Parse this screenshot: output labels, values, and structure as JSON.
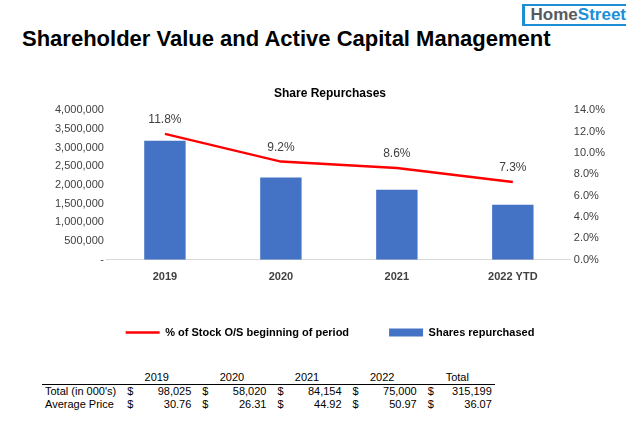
{
  "header": {
    "title": "Shareholder Value and Active Capital Management",
    "logo": [
      "Home",
      "Street"
    ]
  },
  "chart_data": {
    "type": "bar",
    "title": "Share Repurchases",
    "categories": [
      "2019",
      "2020",
      "2021",
      "2022 YTD"
    ],
    "series": [
      {
        "name": "Shares repurchased",
        "type": "bar",
        "color": "#4472c4",
        "values": [
          3187000,
          2205000,
          1873000,
          1471000
        ]
      },
      {
        "name": "% of Stock O/S beginning of period",
        "type": "line",
        "color": "#ff0000",
        "axis": "y2",
        "values": [
          11.8,
          9.2,
          8.6,
          7.3
        ],
        "value_labels": [
          "11.8%",
          "9.2%",
          "8.6%",
          "7.3%"
        ],
        "data_labels": true
      }
    ],
    "ylim": [
      0,
      4000000
    ],
    "yticks": [
      {
        "value": 0,
        "label": "-"
      },
      {
        "value": 500000,
        "label": "500,000"
      },
      {
        "value": 1000000,
        "label": "1,000,000"
      },
      {
        "value": 1500000,
        "label": "1,500,000"
      },
      {
        "value": 2000000,
        "label": "2,000,000"
      },
      {
        "value": 2500000,
        "label": "2,500,000"
      },
      {
        "value": 3000000,
        "label": "3,000,000"
      },
      {
        "value": 3500000,
        "label": "3,500,000"
      },
      {
        "value": 4000000,
        "label": "4,000,000"
      }
    ],
    "y2lim": [
      0,
      14
    ],
    "y2ticks": [
      {
        "value": 0,
        "label": "0.0%"
      },
      {
        "value": 2,
        "label": "2.0%"
      },
      {
        "value": 4,
        "label": "4.0%"
      },
      {
        "value": 6,
        "label": "6.0%"
      },
      {
        "value": 8,
        "label": "8.0%"
      },
      {
        "value": 10,
        "label": "10.0%"
      },
      {
        "value": 12,
        "label": "12.0%"
      },
      {
        "value": 14,
        "label": "14.0%"
      }
    ],
    "grid": false,
    "legend": "bottom"
  },
  "table": {
    "columns": [
      "2019",
      "2020",
      "2021",
      "2022",
      "Total"
    ],
    "currency": "$",
    "rows": [
      {
        "label": "Total (in 000's)",
        "cells": [
          "98,025",
          "58,020",
          "84,154",
          "75,000",
          "315,199"
        ]
      },
      {
        "label": "Average Price",
        "cells": [
          "30.76",
          "26.31",
          "44.92",
          "50.97",
          "36.07"
        ]
      }
    ]
  }
}
